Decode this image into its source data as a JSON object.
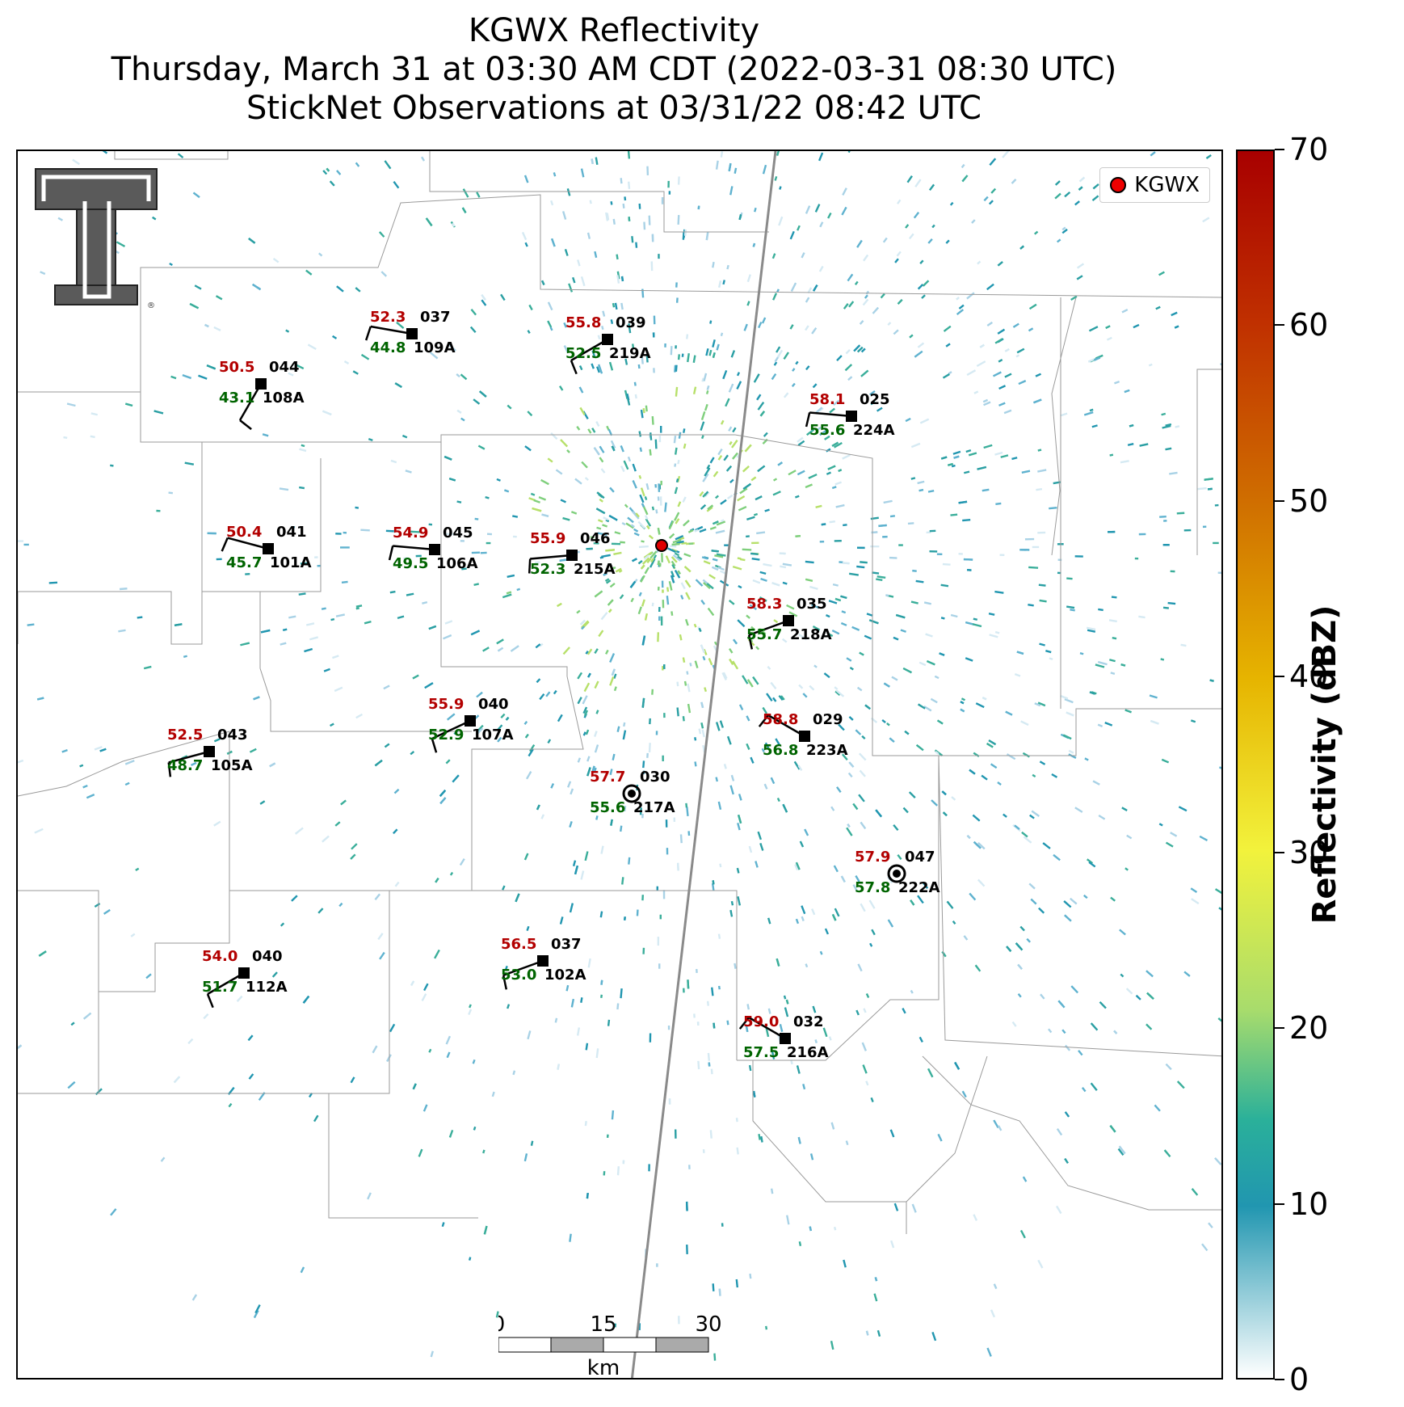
{
  "title": {
    "line1": "KGWX Reflectivity",
    "line2": "Thursday, March 31 at 03:30 AM CDT (2022-03-31 08:30 UTC)",
    "line3": "StickNet Observations at 03/31/22 08:42 UTC"
  },
  "legend": {
    "label": "KGWX",
    "marker_color": "#e00000"
  },
  "logo": {
    "name": "texas-tech-double-t-logo",
    "mark": "®"
  },
  "scalebar": {
    "ticks": [
      "0",
      "15",
      "30"
    ],
    "unit": "km"
  },
  "colorbar": {
    "label": "Reflectivity (dBZ)",
    "ticks": [
      "0",
      "10",
      "20",
      "30",
      "40",
      "50",
      "60",
      "70"
    ],
    "min": 0,
    "max": 70,
    "colors": [
      "#ffffff",
      "#2196b0",
      "#2ab09a",
      "#a8dc6c",
      "#f2f23c",
      "#e6b400",
      "#d07000",
      "#c03000",
      "#a80000"
    ]
  },
  "radar": {
    "site": "KGWX",
    "dominant_dbz_range": [
      5,
      20
    ]
  },
  "stations": [
    {
      "temp": "52.3",
      "dew": "44.8",
      "dir": "037",
      "id": "109A"
    },
    {
      "temp": "55.8",
      "dew": "52.5",
      "dir": "039",
      "id": "219A"
    },
    {
      "temp": "50.5",
      "dew": "43.1",
      "dir": "044",
      "id": "108A"
    },
    {
      "temp": "58.1",
      "dew": "55.6",
      "dir": "025",
      "id": "224A"
    },
    {
      "temp": "50.4",
      "dew": "45.7",
      "dir": "041",
      "id": "101A"
    },
    {
      "temp": "54.9",
      "dew": "49.5",
      "dir": "045",
      "id": "106A"
    },
    {
      "temp": "55.9",
      "dew": "52.3",
      "dir": "046",
      "id": "215A"
    },
    {
      "temp": "58.3",
      "dew": "55.7",
      "dir": "035",
      "id": "218A"
    },
    {
      "temp": "55.9",
      "dew": "52.9",
      "dir": "040",
      "id": "107A"
    },
    {
      "temp": "52.5",
      "dew": "48.7",
      "dir": "043",
      "id": "105A"
    },
    {
      "temp": "58.8",
      "dew": "56.8",
      "dir": "029",
      "id": "223A"
    },
    {
      "temp": "57.7",
      "dew": "55.6",
      "dir": "030",
      "id": "217A"
    },
    {
      "temp": "57.9",
      "dew": "57.8",
      "dir": "047",
      "id": "222A"
    },
    {
      "temp": "56.5",
      "dew": "53.0",
      "dir": "037",
      "id": "102A"
    },
    {
      "temp": "54.0",
      "dew": "51.7",
      "dir": "040",
      "id": "112A"
    },
    {
      "temp": "59.0",
      "dew": "57.5",
      "dir": "032",
      "id": "216A"
    }
  ]
}
